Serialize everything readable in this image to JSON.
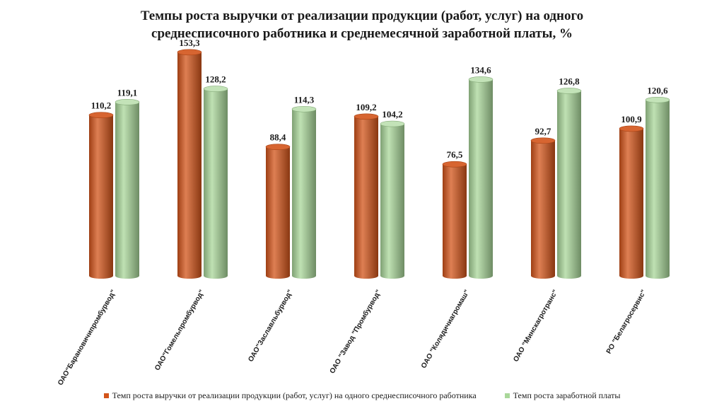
{
  "title_lines": [
    "Темпы роста выручки от реализации продукции (работ, услуг) на одного",
    "среднесписочного работника и среднемесячной заработной платы, %"
  ],
  "colors": {
    "series1": "#d3541a",
    "series2": "#a9d79a"
  },
  "chart_data": {
    "type": "bar",
    "title": "Темпы роста выручки от реализации продукции (работ, услуг) на одного среднесписочного работника и среднемесячной заработной платы, %",
    "categories": [
      "ОАО\"Барановичипромбурвод\"",
      "ОАО\"Гомельпромбурвод\"",
      "ОАО\"Заславльбурвод\"",
      "ОАО \"Завод \"Промбурвод\"",
      "ОАО \"Колядичиагромаш\"",
      "ОАО \"Минскагротранс\"",
      "РО \"Белагросервис\""
    ],
    "series": [
      {
        "name": "Темп роста выручки от реализации продукции (работ, услуг) на одного среднесписочного работника",
        "values": [
          110.2,
          153.3,
          88.4,
          109.2,
          76.5,
          92.7,
          100.9
        ],
        "labels": [
          "110,2",
          "153,3",
          "88,4",
          "109,2",
          "76,5",
          "92,7",
          "100,9"
        ]
      },
      {
        "name": "Темп роста заработной платы",
        "values": [
          119.1,
          128.2,
          114.3,
          104.2,
          134.6,
          126.8,
          120.6
        ],
        "labels": [
          "119,1",
          "128,2",
          "114,3",
          "104,2",
          "134,6",
          "126,8",
          "120,6"
        ]
      }
    ],
    "ylim": [
      0,
      160
    ],
    "grid": false,
    "legend": "bottom"
  }
}
